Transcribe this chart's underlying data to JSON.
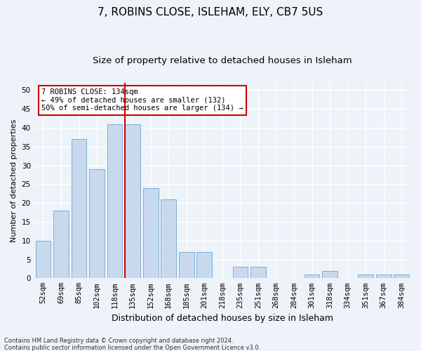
{
  "title1": "7, ROBINS CLOSE, ISLEHAM, ELY, CB7 5US",
  "title2": "Size of property relative to detached houses in Isleham",
  "xlabel": "Distribution of detached houses by size in Isleham",
  "ylabel": "Number of detached properties",
  "categories": [
    "52sqm",
    "69sqm",
    "85sqm",
    "102sqm",
    "118sqm",
    "135sqm",
    "152sqm",
    "168sqm",
    "185sqm",
    "201sqm",
    "218sqm",
    "235sqm",
    "251sqm",
    "268sqm",
    "284sqm",
    "301sqm",
    "318sqm",
    "334sqm",
    "351sqm",
    "367sqm",
    "384sqm"
  ],
  "values": [
    10,
    18,
    37,
    29,
    41,
    41,
    24,
    21,
    7,
    7,
    0,
    3,
    3,
    0,
    0,
    1,
    2,
    0,
    1,
    1,
    1
  ],
  "highlight_index": 5,
  "bar_color": "#c8d9ed",
  "bar_edge_color": "#7aafd4",
  "highlight_line_color": "#cc0000",
  "annotation_text": "7 ROBINS CLOSE: 134sqm\n← 49% of detached houses are smaller (132)\n50% of semi-detached houses are larger (134) →",
  "annotation_box_color": "#ffffff",
  "annotation_box_edge": "#cc0000",
  "ylim": [
    0,
    52
  ],
  "yticks": [
    0,
    5,
    10,
    15,
    20,
    25,
    30,
    35,
    40,
    45,
    50
  ],
  "footnote1": "Contains HM Land Registry data © Crown copyright and database right 2024.",
  "footnote2": "Contains public sector information licensed under the Open Government Licence v3.0.",
  "bg_color": "#eef2f9",
  "plot_bg_color": "#eef2f9",
  "grid_color": "#ffffff",
  "title1_fontsize": 11,
  "title2_fontsize": 9.5,
  "xlabel_fontsize": 9,
  "ylabel_fontsize": 8,
  "tick_fontsize": 7.5,
  "annot_fontsize": 7.5,
  "footnote_fontsize": 6
}
